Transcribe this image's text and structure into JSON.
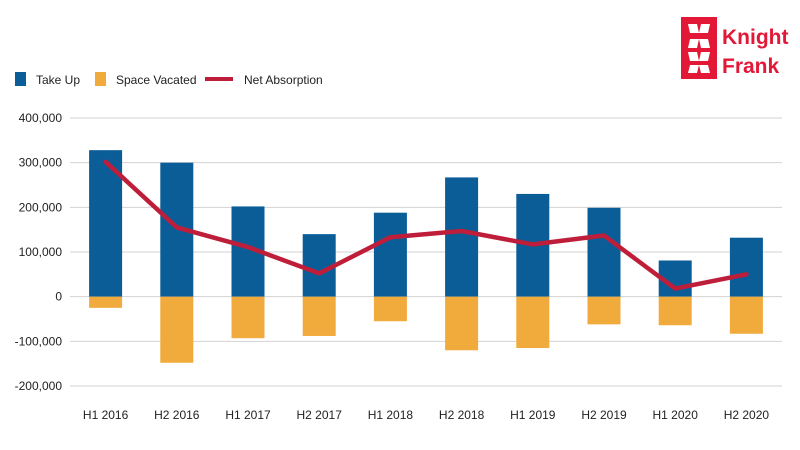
{
  "brand": {
    "name_line1": "Knight",
    "name_line2": "Frank",
    "color": "#E31837"
  },
  "colors": {
    "take_up": "#0B5D98",
    "space_vacated": "#F0AB3C",
    "net_absorption": "#BE1E3A",
    "grid": "#D3D3D3"
  },
  "chart_data": {
    "type": "bar",
    "categories": [
      "H1 2016",
      "H2 2016",
      "H1 2017",
      "H2 2017",
      "H1 2018",
      "H2 2018",
      "H1 2019",
      "H2 2019",
      "H1 2020",
      "H2 2020"
    ],
    "series": [
      {
        "name": "Take Up",
        "kind": "bar",
        "values": [
          328000,
          300000,
          202000,
          140000,
          188000,
          267000,
          230000,
          199000,
          81000,
          132000
        ]
      },
      {
        "name": "Space Vacated",
        "kind": "bar",
        "values": [
          -25000,
          -148000,
          -93000,
          -88000,
          -55000,
          -120000,
          -115000,
          -62000,
          -64000,
          -83000
        ]
      },
      {
        "name": "Net Absorption",
        "kind": "line",
        "values": [
          302000,
          155000,
          111000,
          52000,
          133000,
          147000,
          117000,
          137000,
          18000,
          50000
        ]
      }
    ],
    "yticks": [
      "400,000",
      "300,000",
      "200,000",
      "100,000",
      "0",
      "-100,000",
      "-200,000"
    ],
    "ylim": [
      -200000,
      400000
    ],
    "grid": true,
    "legend_position": "top-left"
  }
}
